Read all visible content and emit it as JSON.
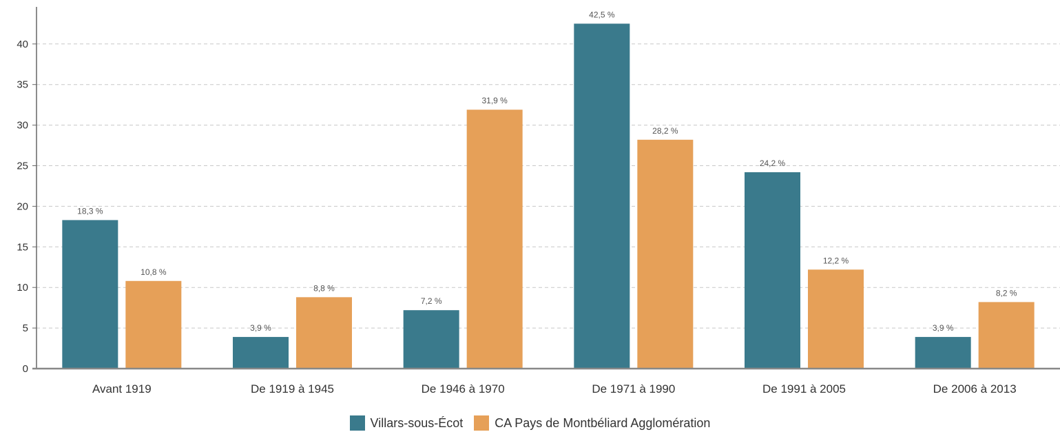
{
  "chart_data": {
    "type": "bar",
    "categories": [
      "Avant 1919",
      "De 1919 à 1945",
      "De 1946 à 1970",
      "De 1971 à 1990",
      "De 1991 à 2005",
      "De 2006 à 2013"
    ],
    "series": [
      {
        "name": "Villars-sous-Écot",
        "color": "#3a7a8c",
        "values": [
          18.3,
          3.9,
          7.2,
          42.5,
          24.2,
          3.9
        ],
        "labels": [
          "18,3 %",
          "3,9 %",
          "7,2 %",
          "42,5 %",
          "24,2 %",
          "3,9 %"
        ]
      },
      {
        "name": "CA Pays de Montbéliard Agglomération",
        "color": "#e6a058",
        "values": [
          10.8,
          8.8,
          31.9,
          28.2,
          12.2,
          8.2
        ],
        "labels": [
          "10,8 %",
          "8,8 %",
          "31,9 %",
          "28,2 %",
          "12,2 %",
          "8,2 %"
        ]
      }
    ],
    "yticks": [
      "0",
      "5",
      "10",
      "15",
      "20",
      "25",
      "30",
      "35",
      "40"
    ],
    "ylim": [
      0,
      45
    ],
    "grid": true,
    "legend_position": "bottom"
  }
}
